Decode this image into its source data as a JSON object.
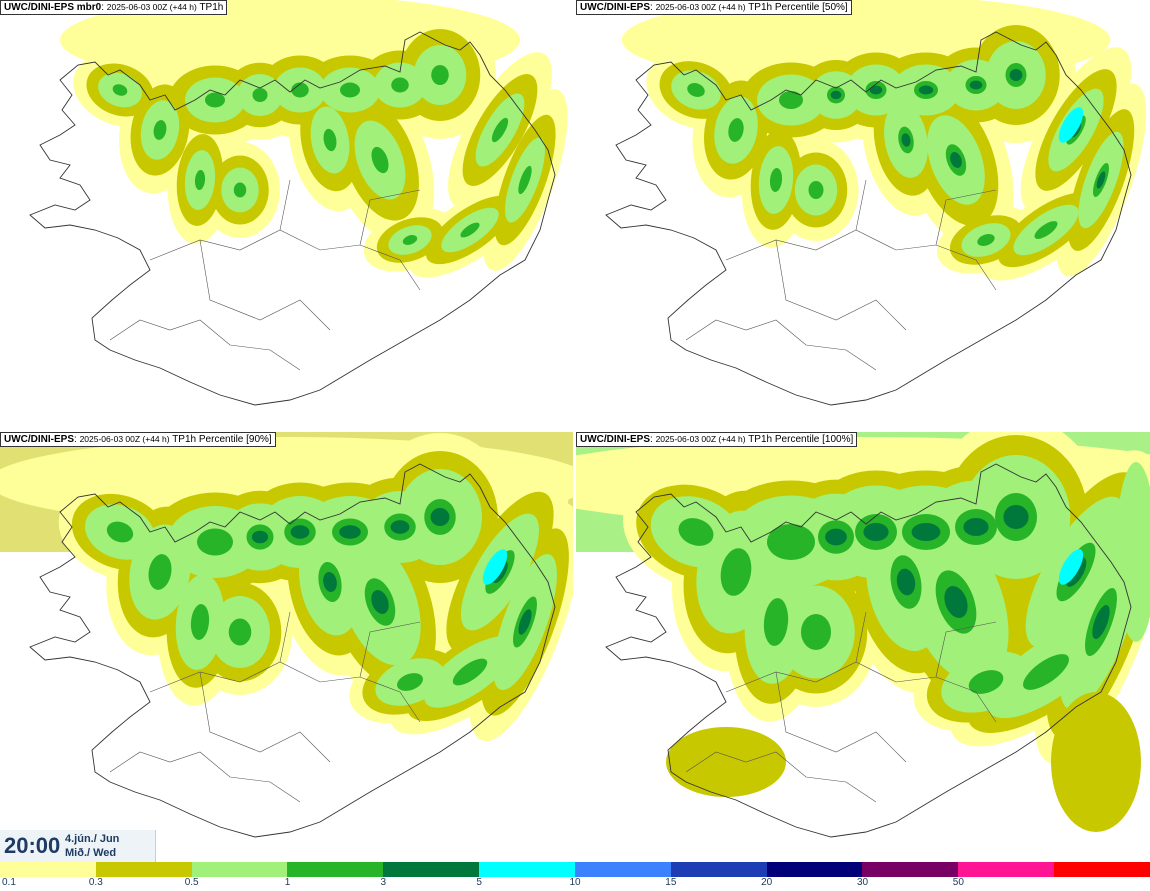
{
  "panels": [
    {
      "model": "UWC/DINI-EPS mbr0",
      "meta": "2025-06-03 00Z (+44 h)",
      "field": "TP1h",
      "intensity": "member"
    },
    {
      "model": "UWC/DINI-EPS",
      "meta": "2025-06-03 00Z (+44 h)",
      "field": "TP1h Percentile [50%]",
      "intensity": "p50"
    },
    {
      "model": "UWC/DINI-EPS",
      "meta": "2025-06-03 00Z (+44 h)",
      "field": "TP1h Percentile [90%]",
      "intensity": "p90"
    },
    {
      "model": "UWC/DINI-EPS",
      "meta": "2025-06-03 00Z (+44 h)",
      "field": "TP1h Percentile [100%]",
      "intensity": "p100"
    }
  ],
  "valid_time": {
    "time": "20:00",
    "date_line1": "4.jún./ Jun",
    "date_line2": "Mið./ Wed"
  },
  "legend": {
    "colors": [
      "#ffff99",
      "#c8c800",
      "#a0f07a",
      "#28b428",
      "#00783c",
      "#00ffff",
      "#3c82ff",
      "#1e3cb4",
      "#000078",
      "#780064",
      "#ff1493",
      "#ff0000"
    ],
    "labels": [
      "0.1",
      "0.3",
      "0.5",
      "1",
      "3",
      "5",
      "10",
      "15",
      "20",
      "30",
      "50"
    ]
  }
}
